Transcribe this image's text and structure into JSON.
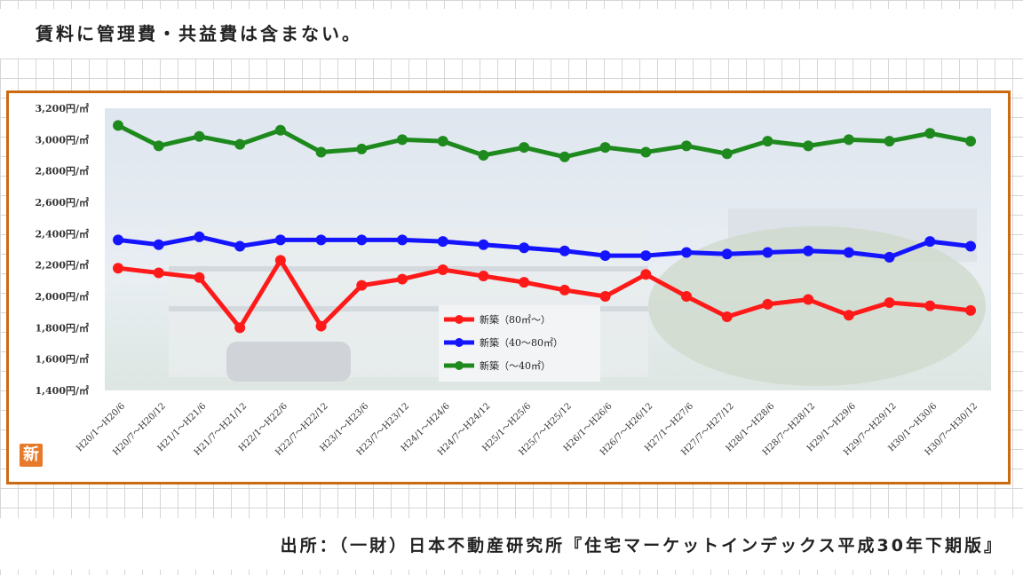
{
  "note": "賃料に管理費・共益費は含まない。",
  "source": "出所：（一財）日本不動産研究所『住宅マーケットインデックス平成30年下期版』",
  "badge": "新",
  "colors": {
    "frame": "#cc6a12",
    "red": "#ff1a1a",
    "blue": "#1414ff",
    "green": "#1e8a1e"
  },
  "chart_data": {
    "type": "line",
    "ylim": [
      1400,
      3200
    ],
    "yticks": [
      "3,200円/㎡",
      "3,000円/㎡",
      "2,800円/㎡",
      "2,600円/㎡",
      "2,400円/㎡",
      "2,200円/㎡",
      "2,000円/㎡",
      "1,800円/㎡",
      "1,600円/㎡",
      "1,400円/㎡"
    ],
    "ytick_values": [
      3200,
      3000,
      2800,
      2600,
      2400,
      2200,
      2000,
      1800,
      1600,
      1400
    ],
    "categories": [
      "H20/1～H20/6",
      "H20/7～H20/12",
      "H21/1～H21/6",
      "H21/7～H21/12",
      "H22/1～H22/6",
      "H22/7～H22/12",
      "H23/1～H23/6",
      "H23/7～H23/12",
      "H24/1～H24/6",
      "H24/7～H24/12",
      "H25/1～H25/6",
      "H25/7～H25/12",
      "H26/1～H26/6",
      "H26/7～H26/12",
      "H27/1～H27/6",
      "H27/7～H27/12",
      "H28/1～H28/6",
      "H28/7～H28/12",
      "H29/1～H29/6",
      "H29/7～H29/12",
      "H30/1～H30/6",
      "H30/7～H30/12"
    ],
    "series": [
      {
        "name": "新築（80㎡～）",
        "color": "#ff1a1a",
        "values": [
          2180,
          2150,
          2120,
          1800,
          2230,
          1810,
          2070,
          2110,
          2170,
          2130,
          2090,
          2040,
          2000,
          2140,
          2000,
          1870,
          1950,
          1980,
          1880,
          1960,
          1940,
          1910
        ]
      },
      {
        "name": "新築（40～80㎡）",
        "color": "#1414ff",
        "values": [
          2360,
          2330,
          2380,
          2320,
          2360,
          2360,
          2360,
          2360,
          2350,
          2330,
          2310,
          2290,
          2260,
          2260,
          2280,
          2270,
          2280,
          2290,
          2280,
          2250,
          2350,
          2320
        ]
      },
      {
        "name": "新築（～40㎡）",
        "color": "#1e8a1e",
        "values": [
          3090,
          2960,
          3020,
          2970,
          3060,
          2920,
          2940,
          3000,
          2990,
          2900,
          2950,
          2890,
          2950,
          2920,
          2960,
          2910,
          2990,
          2960,
          3000,
          2990,
          3040,
          2990
        ]
      }
    ],
    "legend_position": "center"
  }
}
